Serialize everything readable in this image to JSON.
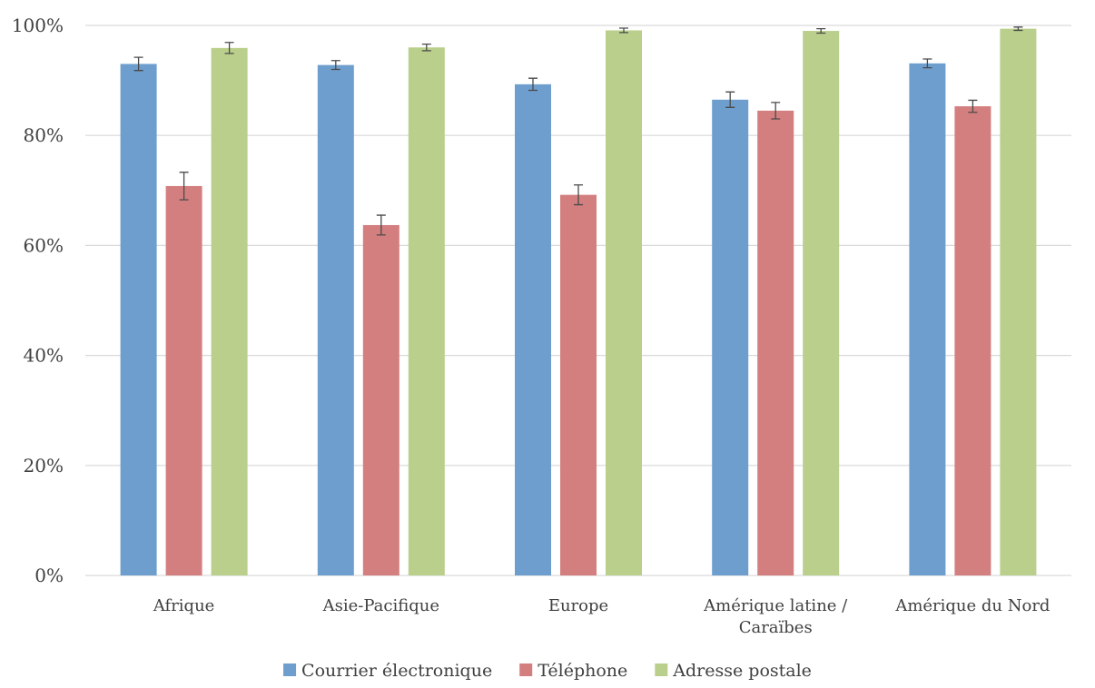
{
  "chart_data": {
    "type": "bar",
    "categories": [
      [
        "Afrique"
      ],
      [
        "Asie-Pacifique"
      ],
      [
        "Europe"
      ],
      [
        "Amérique latine /",
        "Caraïbes"
      ],
      [
        "Amérique du Nord"
      ]
    ],
    "series": [
      {
        "name": "Courrier électronique",
        "color": "#6e9ecd",
        "values": [
          93,
          92.8,
          89.3,
          86.5,
          93.1
        ],
        "errors": [
          1.2,
          0.8,
          1.1,
          1.4,
          0.8
        ]
      },
      {
        "name": "Téléphone",
        "color": "#d47f7f",
        "values": [
          70.8,
          63.7,
          69.2,
          84.5,
          85.3
        ],
        "errors": [
          2.5,
          1.8,
          1.8,
          1.5,
          1.1
        ]
      },
      {
        "name": "Adresse postale",
        "color": "#b9cf8b",
        "values": [
          95.9,
          96,
          99.1,
          99,
          99.4
        ],
        "errors": [
          1,
          0.6,
          0.4,
          0.4,
          0.3
        ]
      }
    ],
    "yticks": [
      "0%",
      "20%",
      "40%",
      "60%",
      "80%",
      "100%"
    ],
    "ylim": [
      0,
      100
    ],
    "grid": true,
    "legend_position": "bottom",
    "title": "",
    "xlabel": "",
    "ylabel": ""
  }
}
